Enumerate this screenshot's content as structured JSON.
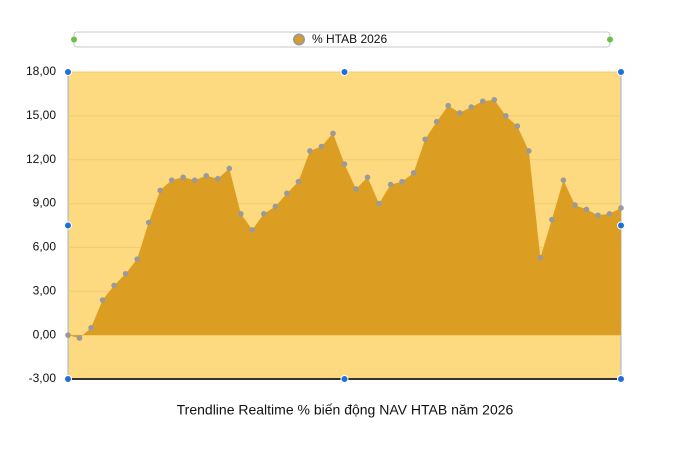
{
  "chart_data": {
    "type": "area",
    "title": "Trendline Realtime % biến động NAV HTAB năm 2026",
    "series": [
      {
        "name": "% HTAB 2026",
        "color": "#dc9e22",
        "marker_color": "#9a9a9a",
        "values": [
          0,
          -0.2,
          0.5,
          2.4,
          3.4,
          4.2,
          5.2,
          7.7,
          9.9,
          10.6,
          10.8,
          10.6,
          10.9,
          10.7,
          11.4,
          8.3,
          7.2,
          8.3,
          8.8,
          9.7,
          10.5,
          12.6,
          12.9,
          13.8,
          11.7,
          10.0,
          10.8,
          9.0,
          10.3,
          10.5,
          11.1,
          13.4,
          14.6,
          15.7,
          15.2,
          15.6,
          16.0,
          16.1,
          15.0,
          14.3,
          12.6,
          5.3,
          7.9,
          10.6,
          8.9,
          8.6,
          8.2,
          8.3,
          8.7
        ]
      }
    ],
    "ylim": [
      -3,
      18
    ],
    "yticks": [
      {
        "value": -3,
        "label": "-3,00"
      },
      {
        "value": 0,
        "label": "0,00"
      },
      {
        "value": 3,
        "label": "3,00"
      },
      {
        "value": 6,
        "label": "6,00"
      },
      {
        "value": 9,
        "label": "9,00"
      },
      {
        "value": 12,
        "label": "12,00"
      },
      {
        "value": 15,
        "label": "15,00"
      },
      {
        "value": 18,
        "label": "18,00"
      }
    ],
    "grid": true,
    "plot_background": "#fdd980"
  }
}
